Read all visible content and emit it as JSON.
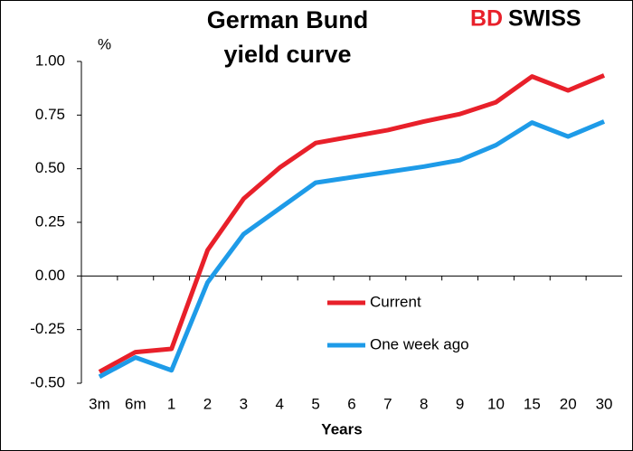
{
  "chart_data": {
    "type": "line",
    "title": [
      "German Bund",
      "yield curve"
    ],
    "brand": [
      "BD",
      "SWISS"
    ],
    "y_unit": "%",
    "x_label": "Years",
    "categories": [
      "3m",
      "6m",
      "1",
      "2",
      "3",
      "4",
      "5",
      "6",
      "7",
      "8",
      "9",
      "10",
      "15",
      "20",
      "30"
    ],
    "series": [
      {
        "name": "Current",
        "color": "#e8202a",
        "values": [
          -0.447,
          -0.355,
          -0.34,
          0.12,
          0.36,
          0.505,
          0.62,
          0.65,
          0.68,
          0.72,
          0.755,
          0.81,
          0.93,
          0.865,
          0.935
        ]
      },
      {
        "name": "One week ago",
        "color": "#1e9be8",
        "values": [
          -0.47,
          -0.38,
          -0.44,
          -0.03,
          0.195,
          0.315,
          0.435,
          0.46,
          0.485,
          0.51,
          0.54,
          0.61,
          0.715,
          0.65,
          0.72
        ]
      }
    ],
    "ylim": [
      -0.5,
      1.0
    ],
    "yticks": [
      {
        "value": -0.5,
        "label": "-0.50"
      },
      {
        "value": -0.25,
        "label": "-0.25"
      },
      {
        "value": 0,
        "label": "0.00"
      },
      {
        "value": 0.25,
        "label": "0.25"
      },
      {
        "value": 0.5,
        "label": "0.50"
      },
      {
        "value": 0.75,
        "label": "0.75"
      },
      {
        "value": 1.0,
        "label": "1.00"
      }
    ],
    "grid": false
  }
}
